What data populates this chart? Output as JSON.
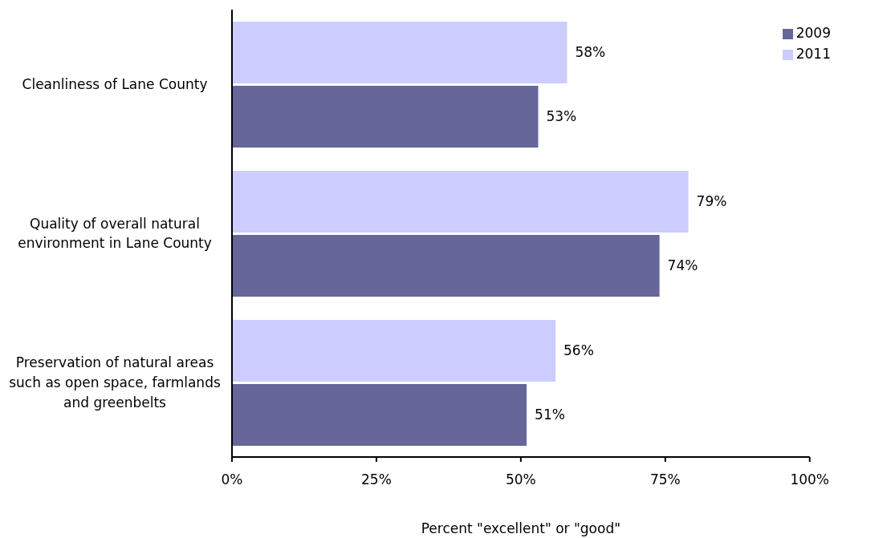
{
  "chart_data": {
    "type": "bar",
    "orientation": "horizontal",
    "xlabel": "Percent \"excellent\" or \"good\"",
    "categories": [
      "Cleanliness of Lane County",
      "Quality of overall natural environment in Lane County",
      "Preservation of natural areas such as open space, farmlands and greenbelts"
    ],
    "series": [
      {
        "name": "2011",
        "color": "#ccccff",
        "values": [
          58,
          79,
          56
        ],
        "value_labels": [
          "58%",
          "79%",
          "56%"
        ]
      },
      {
        "name": "2009",
        "color": "#666699",
        "values": [
          53,
          74,
          51
        ],
        "value_labels": [
          "53%",
          "74%",
          "51%"
        ]
      }
    ],
    "xlim": [
      0,
      100
    ],
    "xticks": [
      {
        "value": 0,
        "label": "0%"
      },
      {
        "value": 25,
        "label": "25%"
      },
      {
        "value": 50,
        "label": "50%"
      },
      {
        "value": 75,
        "label": "75%"
      },
      {
        "value": 100,
        "label": "100%"
      }
    ],
    "legend": "top right",
    "grid": false
  }
}
